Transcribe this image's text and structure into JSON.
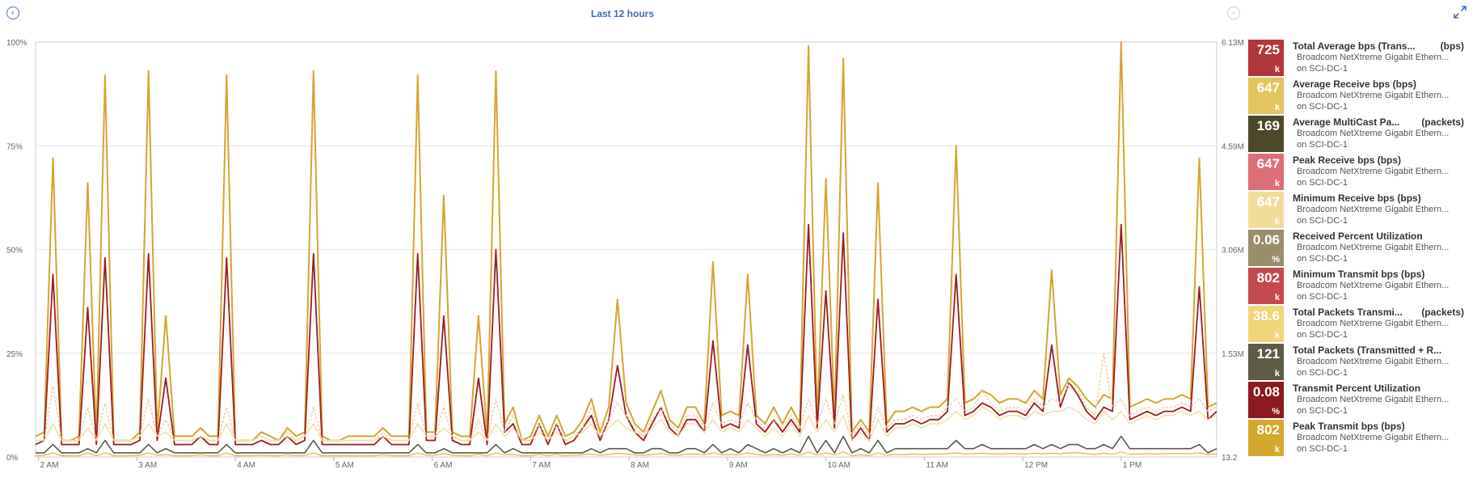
{
  "header": {
    "range_title": "Last 12 hours",
    "prev_icon": "chevron-left-icon",
    "next_icon": "chevron-right-icon",
    "expand_icon": "expand-icon"
  },
  "chart_data": {
    "type": "line",
    "x_ticks": [
      "2 AM",
      "3 AM",
      "4 AM",
      "5 AM",
      "6 AM",
      "7 AM",
      "8 AM",
      "9 AM",
      "10 AM",
      "11 AM",
      "12 PM",
      "1 PM"
    ],
    "y_left_ticks": [
      "100%",
      "75%",
      "50%",
      "25%",
      "0%"
    ],
    "y_right_ticks": [
      "6.13M",
      "4.59M",
      "3.06M",
      "1.53M",
      "13.2"
    ],
    "ylim": [
      0,
      100
    ],
    "x_start_hour": 1.97,
    "x_end_hour": 13.97,
    "grid": true,
    "legend_position": "right",
    "series": [
      {
        "name": "Total Average bps (Transmitted + Received)",
        "color": "#d4a52f",
        "width": 2,
        "values": [
          5,
          6,
          72,
          4,
          4,
          5,
          66,
          4,
          92,
          4,
          4,
          4,
          6,
          93,
          6,
          34,
          5,
          5,
          5,
          7,
          5,
          5,
          92,
          4,
          4,
          4,
          6,
          5,
          4,
          7,
          5,
          6,
          93,
          5,
          4,
          4,
          5,
          5,
          5,
          5,
          7,
          5,
          5,
          5,
          92,
          6,
          6,
          63,
          6,
          5,
          5,
          34,
          5,
          93,
          8,
          12,
          4,
          5,
          10,
          5,
          10,
          5,
          6,
          9,
          14,
          6,
          12,
          38,
          13,
          8,
          6,
          11,
          16,
          9,
          7,
          12,
          12,
          8,
          47,
          10,
          11,
          10,
          44,
          10,
          8,
          12,
          8,
          12,
          8,
          99,
          9,
          67,
          9,
          96,
          6,
          9,
          6,
          66,
          8,
          11,
          11,
          12,
          11,
          12,
          12,
          14,
          75,
          13,
          14,
          16,
          15,
          13,
          14,
          14,
          13,
          16,
          14,
          45,
          15,
          19,
          17,
          14,
          12,
          15,
          14,
          101,
          12,
          13,
          14,
          13,
          14,
          14,
          15,
          14,
          72,
          12,
          13
        ]
      },
      {
        "name": "Average Receive bps",
        "color": "#9e1b22",
        "width": 1.8,
        "values": [
          3,
          4,
          44,
          3,
          3,
          3,
          36,
          3,
          48,
          3,
          3,
          3,
          4,
          49,
          4,
          19,
          3,
          3,
          3,
          5,
          3,
          3,
          48,
          3,
          3,
          3,
          4,
          3,
          3,
          5,
          3,
          4,
          49,
          3,
          3,
          3,
          3,
          3,
          3,
          3,
          5,
          3,
          3,
          3,
          49,
          4,
          4,
          34,
          4,
          3,
          3,
          19,
          3,
          50,
          6,
          8,
          3,
          3,
          8,
          3,
          8,
          3,
          4,
          7,
          10,
          4,
          9,
          22,
          10,
          6,
          4,
          8,
          12,
          7,
          5,
          9,
          9,
          6,
          28,
          7,
          8,
          7,
          27,
          8,
          6,
          9,
          6,
          9,
          6,
          56,
          7,
          40,
          7,
          54,
          4,
          7,
          4,
          38,
          6,
          8,
          8,
          9,
          8,
          9,
          9,
          11,
          44,
          10,
          11,
          13,
          12,
          10,
          11,
          11,
          10,
          13,
          11,
          27,
          12,
          18,
          15,
          11,
          9,
          12,
          11,
          56,
          9,
          10,
          11,
          10,
          11,
          11,
          12,
          11,
          41,
          9,
          11
        ]
      },
      {
        "name": "Peak Receive bps",
        "color": "#f3c99c",
        "width": 1.4,
        "dash": "3,2",
        "values": [
          4,
          4,
          17,
          4,
          4,
          4,
          12,
          4,
          13,
          4,
          4,
          4,
          5,
          14,
          5,
          9,
          4,
          4,
          4,
          5,
          4,
          4,
          12,
          4,
          4,
          4,
          5,
          4,
          4,
          6,
          4,
          5,
          12,
          4,
          4,
          4,
          4,
          4,
          4,
          4,
          6,
          4,
          4,
          4,
          13,
          5,
          5,
          12,
          5,
          4,
          4,
          9,
          4,
          14,
          6,
          10,
          4,
          4,
          8,
          4,
          8,
          4,
          5,
          7,
          12,
          5,
          9,
          13,
          10,
          7,
          5,
          9,
          12,
          8,
          6,
          10,
          10,
          7,
          13,
          8,
          9,
          8,
          13,
          9,
          7,
          9,
          7,
          10,
          7,
          14,
          8,
          14,
          8,
          15,
          5,
          8,
          5,
          12,
          7,
          9,
          9,
          10,
          9,
          10,
          10,
          12,
          14,
          11,
          12,
          16,
          13,
          11,
          12,
          12,
          11,
          14,
          12,
          14,
          13,
          18,
          16,
          12,
          10,
          25,
          12,
          14,
          10,
          11,
          12,
          11,
          12,
          12,
          13,
          12,
          14,
          11,
          12
        ]
      },
      {
        "name": "Minimum Receive bps",
        "color": "#f6dba1",
        "width": 1.4,
        "values": [
          4,
          4,
          8,
          4,
          4,
          4,
          7,
          4,
          8,
          4,
          4,
          4,
          5,
          8,
          5,
          6,
          4,
          4,
          4,
          5,
          4,
          4,
          8,
          4,
          4,
          4,
          5,
          4,
          4,
          5,
          4,
          5,
          8,
          4,
          4,
          4,
          4,
          4,
          4,
          4,
          5,
          4,
          4,
          4,
          8,
          5,
          5,
          7,
          5,
          4,
          4,
          6,
          4,
          8,
          5,
          7,
          4,
          4,
          6,
          4,
          6,
          4,
          5,
          6,
          8,
          5,
          7,
          9,
          7,
          6,
          5,
          7,
          9,
          6,
          5,
          8,
          8,
          6,
          9,
          6,
          7,
          6,
          9,
          7,
          5,
          7,
          5,
          8,
          5,
          10,
          6,
          9,
          6,
          10,
          4,
          6,
          4,
          9,
          5,
          7,
          7,
          8,
          7,
          8,
          8,
          9,
          11,
          9,
          10,
          12,
          11,
          9,
          10,
          10,
          9,
          11,
          10,
          11,
          11,
          12,
          11,
          9,
          8,
          11,
          9,
          11,
          8,
          9,
          10,
          9,
          10,
          10,
          11,
          10,
          11,
          9,
          10
        ]
      },
      {
        "name": "Average MultiCast Packets",
        "color": "#5a5a4a",
        "width": 1.6,
        "values": [
          1,
          1,
          3,
          1,
          1,
          1,
          2,
          1,
          4,
          1,
          1,
          1,
          1,
          3,
          1,
          2,
          1,
          1,
          1,
          1,
          1,
          1,
          3,
          1,
          1,
          1,
          1,
          1,
          1,
          1,
          1,
          1,
          4,
          1,
          1,
          1,
          1,
          1,
          1,
          1,
          1,
          1,
          1,
          1,
          3,
          1,
          1,
          2,
          1,
          1,
          1,
          1,
          1,
          3,
          1,
          2,
          1,
          1,
          1,
          1,
          1,
          1,
          1,
          1,
          2,
          1,
          2,
          2,
          2,
          1,
          1,
          2,
          2,
          1,
          1,
          2,
          2,
          1,
          3,
          1,
          2,
          1,
          3,
          2,
          1,
          2,
          1,
          2,
          1,
          5,
          1,
          4,
          1,
          5,
          1,
          2,
          1,
          4,
          1,
          2,
          2,
          2,
          2,
          2,
          2,
          2,
          4,
          2,
          2,
          3,
          2,
          2,
          2,
          2,
          2,
          3,
          2,
          3,
          2,
          3,
          3,
          2,
          2,
          3,
          2,
          5,
          2,
          2,
          2,
          2,
          2,
          2,
          2,
          2,
          3,
          1,
          2
        ]
      },
      {
        "name": "Received Percent Utilization",
        "color": "#e8b23a",
        "width": 1.2,
        "values": [
          0.3,
          0.4,
          1,
          0.3,
          0.3,
          0.3,
          1,
          0.3,
          1,
          0.3,
          0.3,
          0.3,
          0.4,
          1,
          0.4,
          0.6,
          0.3,
          0.3,
          0.3,
          0.5,
          0.3,
          0.3,
          1,
          0.3,
          0.3,
          0.3,
          0.4,
          0.3,
          0.3,
          0.5,
          0.3,
          0.4,
          1,
          0.3,
          0.3,
          0.3,
          0.3,
          0.3,
          0.3,
          0.3,
          0.5,
          0.3,
          0.3,
          0.3,
          1,
          0.4,
          0.4,
          0.8,
          0.4,
          0.3,
          0.3,
          0.6,
          0.3,
          1,
          0.5,
          0.6,
          0.3,
          0.3,
          0.6,
          0.3,
          0.6,
          0.3,
          0.4,
          0.5,
          0.7,
          0.4,
          0.6,
          0.9,
          0.7,
          0.5,
          0.4,
          0.6,
          0.8,
          0.5,
          0.4,
          0.7,
          0.7,
          0.5,
          1,
          0.5,
          0.6,
          0.5,
          1,
          0.6,
          0.4,
          0.6,
          0.4,
          0.7,
          0.4,
          1.2,
          0.5,
          1,
          0.5,
          1.2,
          0.3,
          0.5,
          0.3,
          1,
          0.4,
          0.6,
          0.6,
          0.7,
          0.6,
          0.7,
          0.7,
          0.8,
          1,
          0.7,
          0.8,
          0.9,
          0.8,
          0.7,
          0.8,
          0.8,
          0.7,
          0.9,
          0.8,
          0.9,
          0.8,
          1,
          1,
          0.8,
          0.6,
          0.9,
          0.7,
          1.2,
          0.6,
          0.7,
          0.8,
          0.7,
          0.8,
          0.8,
          0.8,
          0.8,
          1,
          0.6,
          0.7
        ]
      }
    ]
  },
  "legend": {
    "items": [
      {
        "value": "725",
        "unit": "k",
        "color": "#b3363a",
        "title": "Total Average bps (Trans...",
        "metric_unit": "(bps)",
        "line1": "Broadcom NetXtreme Gigabit Ethern...",
        "line2": "on SCI-DC-1"
      },
      {
        "value": "647",
        "unit": "k",
        "color": "#e5c35e",
        "title": "Average Receive bps (bps)",
        "metric_unit": "",
        "line1": "Broadcom NetXtreme Gigabit Ethern...",
        "line2": "on SCI-DC-1"
      },
      {
        "value": "169",
        "unit": "",
        "color": "#4d4928",
        "title": "Average MultiCast Pa...",
        "metric_unit": "(packets)",
        "line1": "Broadcom NetXtreme Gigabit Ethern...",
        "line2": "on SCI-DC-1"
      },
      {
        "value": "647",
        "unit": "k",
        "color": "#dc6e78",
        "title": "Peak Receive bps (bps)",
        "metric_unit": "",
        "line1": "Broadcom NetXtreme Gigabit Ethern...",
        "line2": "on SCI-DC-1"
      },
      {
        "value": "647",
        "unit": "k",
        "color": "#f3dc9a",
        "title": "Minimum Receive bps (bps)",
        "metric_unit": "",
        "line1": "Broadcom NetXtreme Gigabit Ethern...",
        "line2": "on SCI-DC-1"
      },
      {
        "value": "0.06",
        "unit": "%",
        "color": "#9a8e6a",
        "title": "Received Percent Utilization",
        "metric_unit": "",
        "line1": "Broadcom NetXtreme Gigabit Ethern...",
        "line2": "on SCI-DC-1"
      },
      {
        "value": "802",
        "unit": "k",
        "color": "#c44a4e",
        "title": "Minimum Transmit bps (bps)",
        "metric_unit": "",
        "line1": "Broadcom NetXtreme Gigabit Ethern...",
        "line2": "on SCI-DC-1"
      },
      {
        "value": "38.6",
        "unit": "k",
        "color": "#f1d57a",
        "title": "Total Packets Transmi...",
        "metric_unit": "(packets)",
        "line1": "Broadcom NetXtreme Gigabit Ethern...",
        "line2": "on SCI-DC-1"
      },
      {
        "value": "121",
        "unit": "k",
        "color": "#5e5a44",
        "title": "Total Packets (Transmitted + R...",
        "metric_unit": "",
        "line1": "Broadcom NetXtreme Gigabit Ethern...",
        "line2": "on SCI-DC-1"
      },
      {
        "value": "0.08",
        "unit": "%",
        "color": "#8c1a1e",
        "title": "Transmit Percent Utilization",
        "metric_unit": "",
        "line1": "Broadcom NetXtreme Gigabit Ethern...",
        "line2": "on SCI-DC-1"
      },
      {
        "value": "802",
        "unit": "k",
        "color": "#d4a82a",
        "title": "Peak Transmit bps (bps)",
        "metric_unit": "",
        "line1": "Broadcom NetXtreme Gigabit Ethern...",
        "line2": "on SCI-DC-1"
      }
    ]
  }
}
